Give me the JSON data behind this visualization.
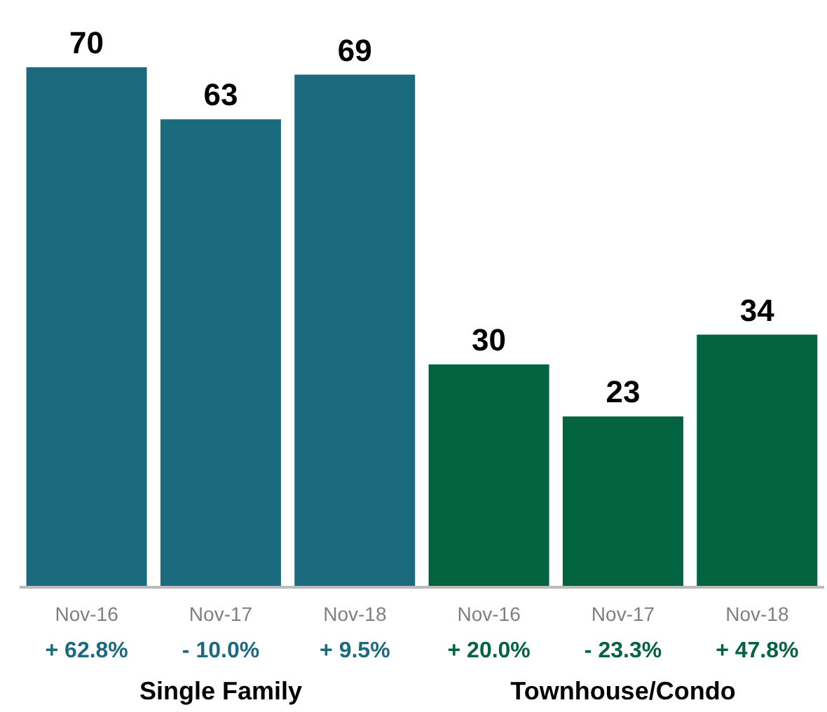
{
  "chart_data": {
    "type": "bar",
    "categories": [
      "Nov-16",
      "Nov-17",
      "Nov-18",
      "Nov-16",
      "Nov-17",
      "Nov-18"
    ],
    "values": [
      70,
      63,
      69,
      30,
      23,
      34
    ],
    "colors": [
      "#1b6a7e",
      "#1b6a7e",
      "#1b6a7e",
      "#026341",
      "#026341",
      "#026341"
    ],
    "data_labels": true,
    "annotations": [
      "+ 62.8%",
      "- 10.0%",
      "+ 9.5%",
      "+ 20.0%",
      "- 23.3%",
      "+ 47.8%",
      "Single Family",
      "Townhouse/Condo"
    ]
  }
}
